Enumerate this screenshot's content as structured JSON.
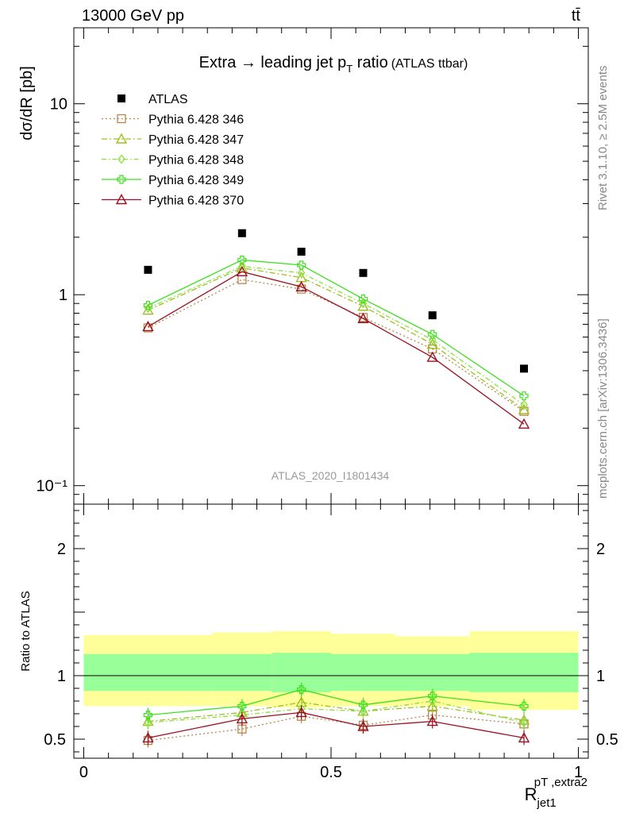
{
  "header": {
    "left": "13000 GeV pp",
    "right": "tt̄"
  },
  "side_labels": {
    "rivet": "Rivet 3.1.10, ≥ 2.5M events",
    "mcplots": "mcplots.cern.ch [arXiv:1306.3436]"
  },
  "chart_data": [
    {
      "type": "scatter",
      "panel": "main",
      "title_main": "Extra → leading jet p",
      "title_sub": "T",
      "title_tail": " ratio",
      "title_small": "(ATLAS ttbar)",
      "ylabel": "dσ/dR [pb]",
      "xlabel": "R jet1 pT,extra2",
      "watermark": "ATLAS_2020_I1801434",
      "y_scale": "log",
      "ylim": [
        0.08,
        25
      ],
      "xlim": [
        -0.02,
        1.02
      ],
      "ytick_labels": [
        "10⁻¹",
        "1",
        "10"
      ],
      "legend_position": "top-left",
      "x": [
        0.13,
        0.32,
        0.44,
        0.565,
        0.705,
        0.89
      ],
      "series": [
        {
          "name": "ATLAS",
          "values": [
            1.35,
            2.1,
            1.68,
            1.3,
            0.78,
            0.41
          ]
        },
        {
          "name": "Pythia 6.428 346",
          "values": [
            0.67,
            1.2,
            1.07,
            0.76,
            0.52,
            0.245
          ]
        },
        {
          "name": "Pythia 6.428 347",
          "values": [
            0.83,
            1.38,
            1.23,
            0.87,
            0.55,
            0.25
          ]
        },
        {
          "name": "Pythia 6.428 348",
          "values": [
            0.85,
            1.41,
            1.3,
            0.9,
            0.58,
            0.265
          ]
        },
        {
          "name": "Pythia 6.428 349",
          "values": [
            0.88,
            1.52,
            1.43,
            0.95,
            0.62,
            0.295
          ]
        },
        {
          "name": "Pythia 6.428 370",
          "values": [
            0.68,
            1.32,
            1.1,
            0.75,
            0.47,
            0.21
          ]
        }
      ]
    },
    {
      "type": "line",
      "panel": "ratio",
      "ylabel": "Ratio to ATLAS",
      "xlabel_main": "R",
      "xlabel_sub": "jet1",
      "xlabel_sup": "pT ,extra2",
      "ylim": [
        0.35,
        2.35
      ],
      "xlim": [
        -0.02,
        1.02
      ],
      "ytick_labels": [
        "0.5",
        "1",
        "2"
      ],
      "xtick_labels": [
        "0",
        "0.5",
        "1"
      ],
      "bands": [
        {
          "x0": 0.0,
          "x1": 0.26,
          "stat": [
            0.88,
            1.17
          ],
          "total": [
            0.76,
            1.32
          ]
        },
        {
          "x0": 0.26,
          "x1": 0.38,
          "stat": [
            0.88,
            1.17
          ],
          "total": [
            0.76,
            1.34
          ]
        },
        {
          "x0": 0.38,
          "x1": 0.5,
          "stat": [
            0.87,
            1.18
          ],
          "total": [
            0.75,
            1.35
          ]
        },
        {
          "x0": 0.5,
          "x1": 0.63,
          "stat": [
            0.88,
            1.17
          ],
          "total": [
            0.76,
            1.33
          ]
        },
        {
          "x0": 0.63,
          "x1": 0.78,
          "stat": [
            0.88,
            1.17
          ],
          "total": [
            0.76,
            1.31
          ]
        },
        {
          "x0": 0.78,
          "x1": 1.0,
          "stat": [
            0.87,
            1.18
          ],
          "total": [
            0.73,
            1.35
          ]
        }
      ],
      "x": [
        0.13,
        0.32,
        0.44,
        0.565,
        0.705,
        0.89
      ],
      "series": [
        {
          "name": "Pythia 6.428 346",
          "values": [
            0.49,
            0.58,
            0.68,
            0.61,
            0.69,
            0.62
          ]
        },
        {
          "name": "Pythia 6.428 347",
          "values": [
            0.64,
            0.71,
            0.79,
            0.72,
            0.76,
            0.65
          ]
        },
        {
          "name": "Pythia 6.428 348",
          "values": [
            0.63,
            0.69,
            0.74,
            0.72,
            0.8,
            0.63
          ]
        },
        {
          "name": "Pythia 6.428 349",
          "values": [
            0.69,
            0.76,
            0.89,
            0.77,
            0.84,
            0.76
          ]
        },
        {
          "name": "Pythia 6.428 370",
          "values": [
            0.51,
            0.66,
            0.71,
            0.6,
            0.64,
            0.51
          ]
        }
      ]
    }
  ],
  "styles": {
    "Pythia 6.428 346": {
      "color": "#b8864a",
      "dash": "2,3",
      "marker": "square-open"
    },
    "Pythia 6.428 347": {
      "color": "#9fbf1f",
      "dash": "7,3,2,3",
      "marker": "triangle-open"
    },
    "Pythia 6.428 348": {
      "color": "#8ce03c",
      "dash": "6,3,1.5,3",
      "marker": "diamond-open"
    },
    "Pythia 6.428 349": {
      "color": "#3de01f",
      "dash": "",
      "marker": "cross-open"
    },
    "Pythia 6.428 370": {
      "color": "#9b1020",
      "dash": "",
      "marker": "triangle-open"
    },
    "ATLAS": {
      "color": "#000000",
      "marker": "square-filled"
    },
    "band_total": "#ffff99",
    "band_stat": "#99ff99"
  }
}
